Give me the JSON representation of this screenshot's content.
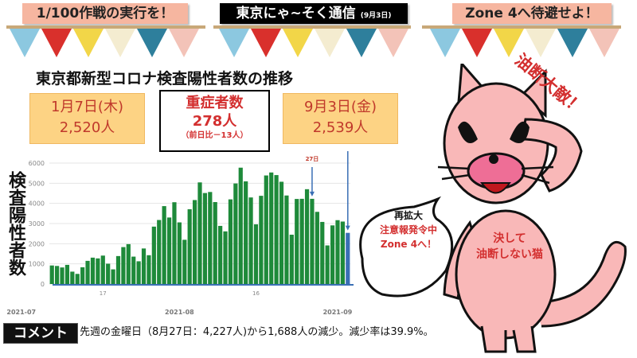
{
  "banners": {
    "left": "1/100作戦の実行を！",
    "center": "東京にゃ~そく通信",
    "center_date": "(9月3日)",
    "right": "Zone 4へ待避せよ！"
  },
  "title": "東京都新型コロナ検査陽性者数の推移",
  "left_box": {
    "date": "1月7日(木)",
    "count": "2,520人"
  },
  "severe_box": {
    "label": "重症者数",
    "count": "278人",
    "diff": "（前日比－13人）"
  },
  "right_box": {
    "date": "9月3日(金)",
    "count": "2,539人"
  },
  "cat": {
    "warning": "油断大敵！",
    "bubble": [
      "再拡大",
      "注意報発令中",
      "Zone 4へ！"
    ],
    "body": [
      "決して",
      "油断しない猫"
    ]
  },
  "comment": {
    "label": "コメント",
    "text": "先週の金曜日（8月27日：4,227人)から1,688人の減少。減少率は39.9%。"
  },
  "colors": {
    "bar": "#1e8a3a",
    "highlight_bar": "#3a6fb5",
    "accent_red": "#d32f2f",
    "banner": "#f6b6a0",
    "box": "#fdd384"
  },
  "chart_data": {
    "type": "bar",
    "ylabel": "検査陽性者数",
    "ylim": [
      0,
      6000
    ],
    "yticks": [
      0,
      1000,
      2000,
      3000,
      4000,
      5000,
      6000
    ],
    "grid": true,
    "xtick_labels": [
      {
        "date": "2021-07-17",
        "label": "17"
      },
      {
        "date": "2021-08-16",
        "label": "16"
      }
    ],
    "xmonth_labels": [
      {
        "date": "2021-07-01",
        "label": "2021-07"
      },
      {
        "date": "2021-08-01",
        "label": "2021-08"
      },
      {
        "date": "2021-09-01",
        "label": "2021-09"
      }
    ],
    "annotations": [
      {
        "date": "2021-08-27",
        "label": "27日"
      },
      {
        "date": "2021-09-03",
        "label": ""
      }
    ],
    "highlight": "2021-09-03",
    "categories": [
      "2021-07-07",
      "2021-07-08",
      "2021-07-09",
      "2021-07-10",
      "2021-07-11",
      "2021-07-12",
      "2021-07-13",
      "2021-07-14",
      "2021-07-15",
      "2021-07-16",
      "2021-07-17",
      "2021-07-18",
      "2021-07-19",
      "2021-07-20",
      "2021-07-21",
      "2021-07-22",
      "2021-07-23",
      "2021-07-24",
      "2021-07-25",
      "2021-07-26",
      "2021-07-27",
      "2021-07-28",
      "2021-07-29",
      "2021-07-30",
      "2021-07-31",
      "2021-08-01",
      "2021-08-02",
      "2021-08-03",
      "2021-08-04",
      "2021-08-05",
      "2021-08-06",
      "2021-08-07",
      "2021-08-08",
      "2021-08-09",
      "2021-08-10",
      "2021-08-11",
      "2021-08-12",
      "2021-08-13",
      "2021-08-14",
      "2021-08-15",
      "2021-08-16",
      "2021-08-17",
      "2021-08-18",
      "2021-08-19",
      "2021-08-20",
      "2021-08-21",
      "2021-08-22",
      "2021-08-23",
      "2021-08-24",
      "2021-08-25",
      "2021-08-26",
      "2021-08-27",
      "2021-08-28",
      "2021-08-29",
      "2021-08-30",
      "2021-08-31",
      "2021-09-01",
      "2021-09-02",
      "2021-09-03"
    ],
    "values": [
      920,
      896,
      822,
      950,
      614,
      502,
      830,
      1149,
      1308,
      1271,
      1410,
      1008,
      727,
      1387,
      1832,
      1979,
      1359,
      1128,
      1763,
      1429,
      2848,
      3177,
      3865,
      3300,
      4058,
      3058,
      2195,
      3709,
      4166,
      5042,
      4515,
      4566,
      4066,
      2884,
      2612,
      4200,
      4989,
      5773,
      5094,
      4295,
      2962,
      4377,
      5386,
      5534,
      5405,
      5074,
      4392,
      2447,
      4220,
      4228,
      4704,
      4227,
      3581,
      3081,
      1915,
      2909,
      3168,
      3099,
      2539
    ]
  }
}
